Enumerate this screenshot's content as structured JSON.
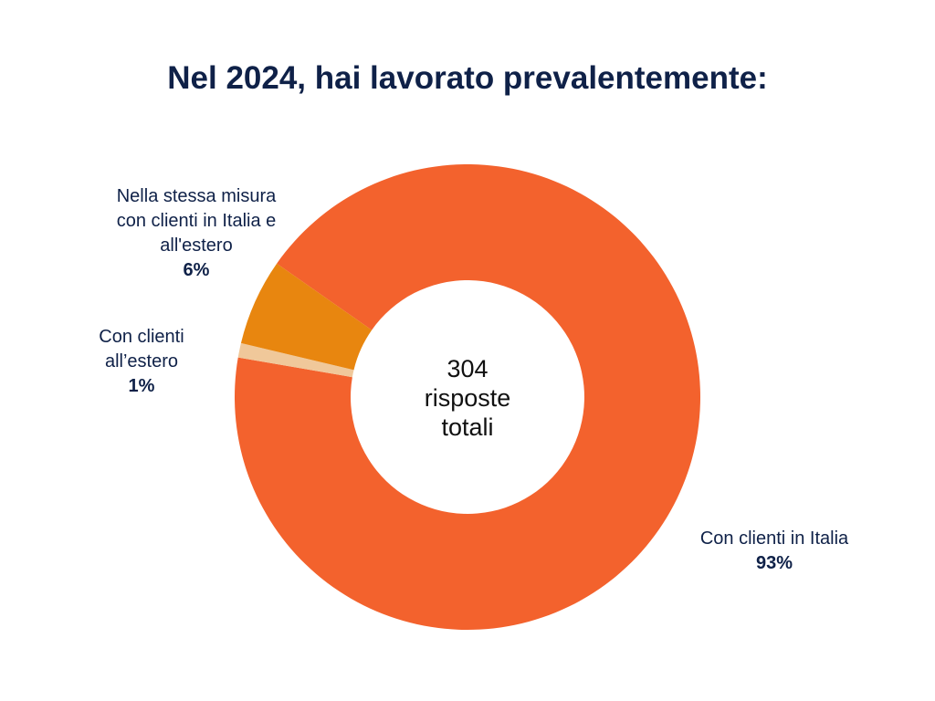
{
  "title": "Nel 2024, hai lavorato prevalentemente:",
  "center": {
    "total": "304",
    "line2": "risposte",
    "line3": "totali"
  },
  "labels": [
    {
      "lines": [
        "Nella stessa misura",
        "con clienti in Italia e",
        "all'estero"
      ],
      "pct": "6%"
    },
    {
      "lines": [
        "Con clienti",
        "all’estero"
      ],
      "pct": "1%"
    },
    {
      "lines": [
        "Con clienti in Italia"
      ],
      "pct": "93%"
    }
  ],
  "colors": {
    "italia": "#f3622d",
    "stessa_misura": "#e8860f",
    "estero": "#f0c89a",
    "title": "#0f2148"
  },
  "chart_data": {
    "type": "pie",
    "variant": "donut",
    "title": "Nel 2024, hai lavorato prevalentemente:",
    "center_label": "304 risposte totali",
    "total_responses": 304,
    "categories": [
      "Con clienti in Italia",
      "Con clienti all’estero",
      "Nella stessa misura con clienti in Italia e all'estero"
    ],
    "values": [
      93,
      1,
      6
    ],
    "unit": "%",
    "colors": [
      "#f3622d",
      "#f0c89a",
      "#e8860f"
    ],
    "legend": "none (direct labels)"
  }
}
